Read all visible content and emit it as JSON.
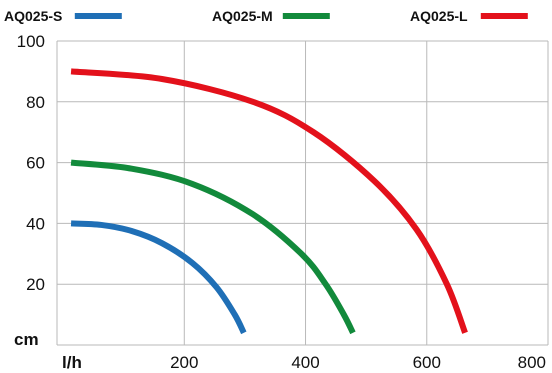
{
  "chart_data": {
    "type": "line",
    "xlabel": "l/h",
    "ylabel": "cm",
    "xlim": [
      -10,
      800
    ],
    "ylim": [
      0,
      100
    ],
    "x_ticks": [
      200,
      400,
      600,
      800
    ],
    "y_ticks": [
      20,
      40,
      60,
      80,
      100
    ],
    "grid": true,
    "legend_position": "top",
    "series": [
      {
        "name": "AQ025-S",
        "color": "#1f6fb6",
        "x": [
          0,
          50,
          100,
          150,
          200,
          240,
          270,
          285
        ],
        "y": [
          40,
          39.5,
          37.5,
          33.5,
          27,
          19,
          10,
          4
        ]
      },
      {
        "name": "AQ025-M",
        "color": "#128a3b",
        "x": [
          0,
          100,
          200,
          300,
          380,
          420,
          450,
          465
        ],
        "y": [
          60,
          58,
          53,
          43,
          30,
          20,
          10,
          4
        ]
      },
      {
        "name": "AQ025-L",
        "color": "#e3111b",
        "x": [
          0,
          150,
          300,
          400,
          500,
          570,
          620,
          650
        ],
        "y": [
          90,
          87.5,
          80,
          70,
          54,
          38,
          20,
          4
        ]
      }
    ]
  }
}
